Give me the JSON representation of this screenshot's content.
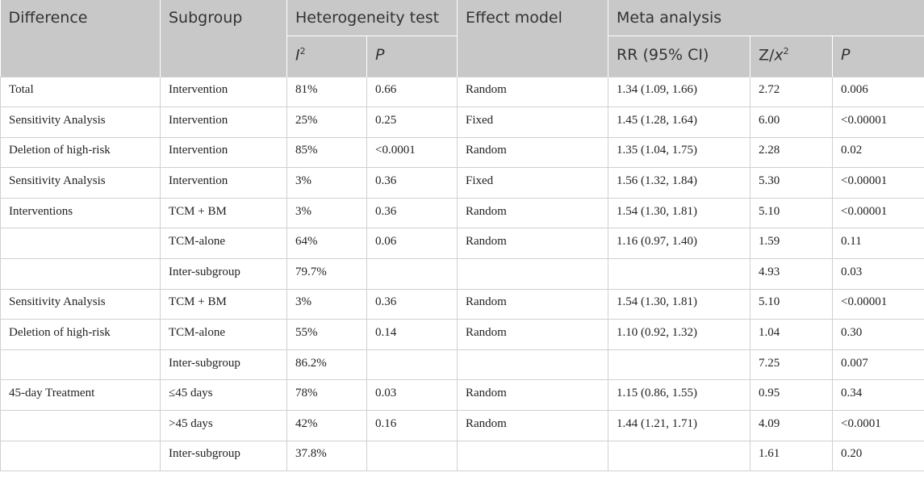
{
  "table": {
    "headers": {
      "difference": "Difference",
      "subgroup": "Subgroup",
      "heterogeneity_test": "Heterogeneity test",
      "effect_model": "Effect model",
      "meta_analysis": "Meta analysis",
      "i2_base": "I",
      "i2_sup": "2",
      "het_p": "P",
      "rr_ci": "RR (95% CI)",
      "z_base": "Z/",
      "z_italic": "x",
      "z_sup": "2",
      "meta_p": "P"
    },
    "rows": [
      [
        "Total",
        "Intervention",
        "81%",
        "0.66",
        "Random",
        "1.34 (1.09, 1.66)",
        "2.72",
        "0.006"
      ],
      [
        "Sensitivity Analysis",
        "Intervention",
        "25%",
        "0.25",
        "Fixed",
        "1.45 (1.28, 1.64)",
        "6.00",
        "<0.00001"
      ],
      [
        "Deletion of high-risk",
        "Intervention",
        "85%",
        "<0.0001",
        "Random",
        "1.35 (1.04, 1.75)",
        "2.28",
        "0.02"
      ],
      [
        "Sensitivity Analysis",
        "Intervention",
        "3%",
        "0.36",
        "Fixed",
        "1.56 (1.32, 1.84)",
        "5.30",
        "<0.00001"
      ],
      [
        "Interventions",
        "TCM + BM",
        "3%",
        "0.36",
        "Random",
        "1.54 (1.30, 1.81)",
        "5.10",
        "<0.00001"
      ],
      [
        "",
        "TCM-alone",
        "64%",
        "0.06",
        "Random",
        "1.16 (0.97, 1.40)",
        "1.59",
        "0.11"
      ],
      [
        "",
        "Inter-subgroup",
        "79.7%",
        "",
        "",
        "",
        "4.93",
        "0.03"
      ],
      [
        "Sensitivity Analysis",
        "TCM + BM",
        "3%",
        "0.36",
        "Random",
        "1.54 (1.30, 1.81)",
        "5.10",
        "<0.00001"
      ],
      [
        "Deletion of high-risk",
        "TCM-alone",
        "55%",
        "0.14",
        "Random",
        "1.10 (0.92, 1.32)",
        "1.04",
        "0.30"
      ],
      [
        "",
        "Inter-subgroup",
        "86.2%",
        "",
        "",
        "",
        "7.25",
        "0.007"
      ],
      [
        "45-day Treatment",
        "≤45 days",
        "78%",
        "0.03",
        "Random",
        "1.15 (0.86, 1.55)",
        "0.95",
        "0.34"
      ],
      [
        "",
        ">45 days",
        "42%",
        "0.16",
        "Random",
        "1.44 (1.21, 1.71)",
        "4.09",
        "<0.0001"
      ],
      [
        "",
        "Inter-subgroup",
        "37.8%",
        "",
        "",
        "",
        "1.61",
        "0.20"
      ]
    ]
  }
}
